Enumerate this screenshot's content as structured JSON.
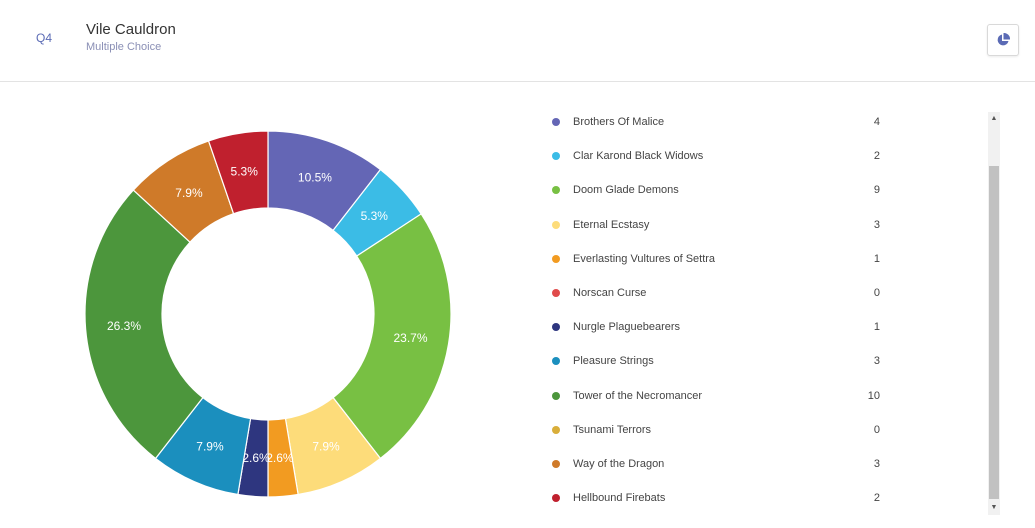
{
  "question": {
    "number": "Q4",
    "title": "Vile Cauldron",
    "type": "Multiple Choice",
    "chart_button_icon": "pie-chart-icon"
  },
  "chart_data": {
    "type": "pie",
    "style": "donut",
    "categories": [
      "Brothers Of Malice",
      "Clar Karond Black Widows",
      "Doom Glade Demons",
      "Eternal Ecstasy",
      "Everlasting Vultures of Settra",
      "Norscan Curse",
      "Nurgle Plaguebearers",
      "Pleasure Strings",
      "Tower of the Necromancer",
      "Tsunami Terrors",
      "Way of the Dragon",
      "Hellbound Firebats"
    ],
    "values": [
      4,
      2,
      9,
      3,
      1,
      0,
      1,
      3,
      10,
      0,
      3,
      2
    ],
    "percent_labels": [
      "10.5%",
      "5.3%",
      "23.7%",
      "7.9%",
      "2.6%",
      "",
      "2.6%",
      "7.9%",
      "26.3%",
      "",
      "7.9%",
      "5.3%"
    ],
    "colors": [
      "#6466b5",
      "#3bbce6",
      "#78c043",
      "#fddc7a",
      "#f29b21",
      "#e04b4b",
      "#2e367f",
      "#1b8fbe",
      "#4c963c",
      "#d9ae3a",
      "#cf7a29",
      "#c0202e"
    ],
    "legend_position": "right"
  },
  "legend": {
    "scroll_up_icon": "scroll-up-arrow-icon",
    "scroll_down_icon": "scroll-down-arrow-icon"
  }
}
